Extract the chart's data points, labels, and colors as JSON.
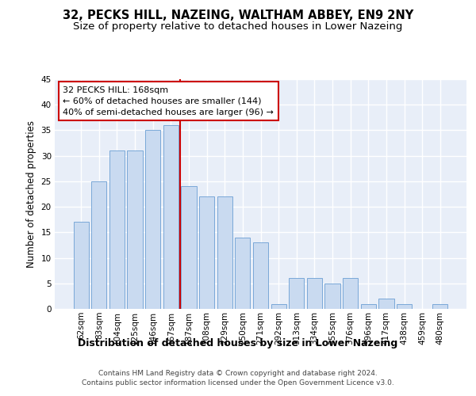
{
  "title": "32, PECKS HILL, NAZEING, WALTHAM ABBEY, EN9 2NY",
  "subtitle": "Size of property relative to detached houses in Lower Nazeing",
  "xlabel": "Distribution of detached houses by size in Lower Nazeing",
  "ylabel": "Number of detached properties",
  "bar_color": "#c9daf0",
  "bar_edge_color": "#7aa8d8",
  "categories": [
    "62sqm",
    "83sqm",
    "104sqm",
    "125sqm",
    "146sqm",
    "167sqm",
    "187sqm",
    "208sqm",
    "229sqm",
    "250sqm",
    "271sqm",
    "292sqm",
    "313sqm",
    "334sqm",
    "355sqm",
    "376sqm",
    "396sqm",
    "417sqm",
    "438sqm",
    "459sqm",
    "480sqm"
  ],
  "values": [
    17,
    25,
    31,
    31,
    35,
    36,
    24,
    22,
    22,
    14,
    13,
    1,
    6,
    6,
    5,
    6,
    1,
    2,
    1,
    0,
    1
  ],
  "vline_x": 5.5,
  "vline_color": "#cc0000",
  "annotation_line1": "32 PECKS HILL: 168sqm",
  "annotation_line2": "← 60% of detached houses are smaller (144)",
  "annotation_line3": "40% of semi-detached houses are larger (96) →",
  "ylim": [
    0,
    45
  ],
  "yticks": [
    0,
    5,
    10,
    15,
    20,
    25,
    30,
    35,
    40,
    45
  ],
  "footer": "Contains HM Land Registry data © Crown copyright and database right 2024.\nContains public sector information licensed under the Open Government Licence v3.0.",
  "fig_bg_color": "#ffffff",
  "axes_bg_color": "#e8eef8",
  "grid_color": "#ffffff",
  "title_fontsize": 10.5,
  "subtitle_fontsize": 9.5,
  "xlabel_fontsize": 9,
  "ylabel_fontsize": 8.5,
  "tick_fontsize": 7.5,
  "annotation_fontsize": 8,
  "footer_fontsize": 6.5
}
